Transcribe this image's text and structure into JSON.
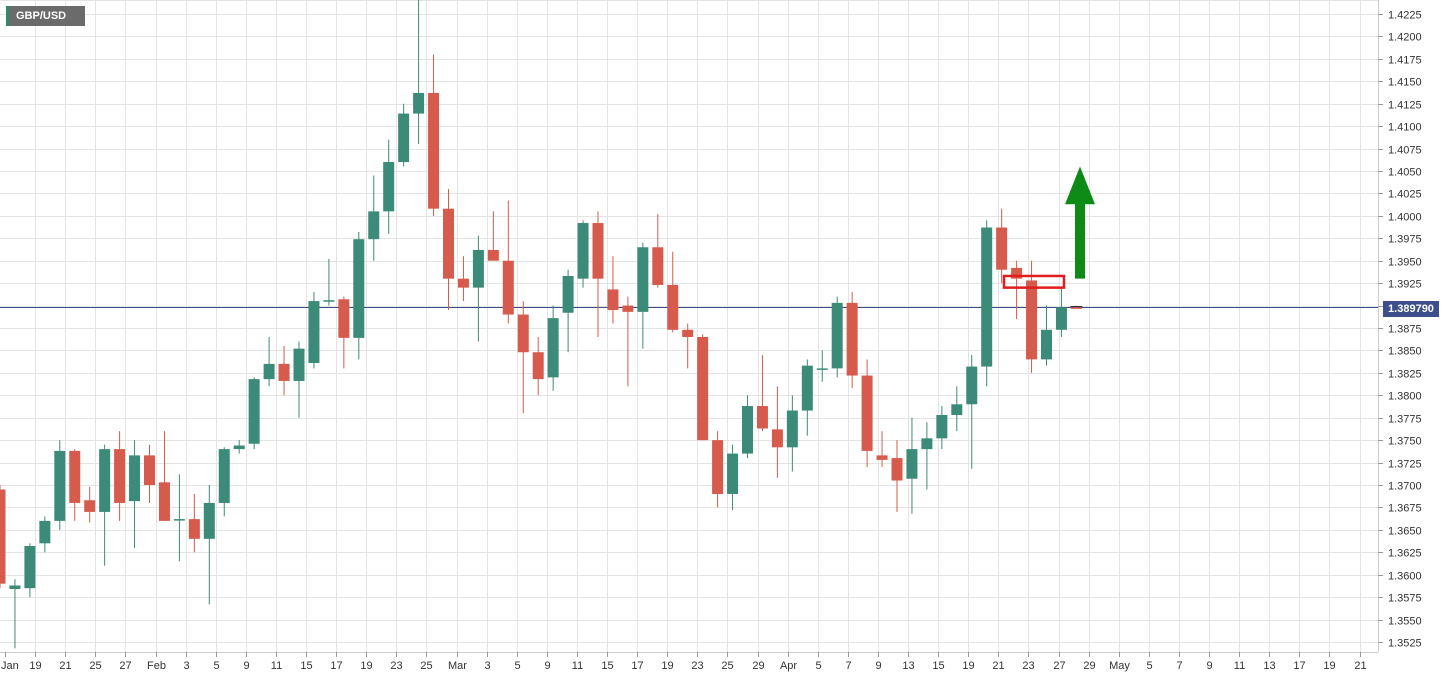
{
  "symbol": "GBP/USD",
  "current_price_label": "1.389790",
  "colors": {
    "up": "#3c8a78",
    "down": "#d65b4c",
    "grid": "#e4e4e4",
    "price_line": "#3d4e8c",
    "arrow": "#0e8a17",
    "box": "#e11d1d"
  },
  "annotations": {
    "arrow": "up-arrow-icon",
    "box": "highlight-rectangle"
  },
  "chart_data": {
    "type": "candlestick",
    "title": "",
    "xlabel": "",
    "ylabel": "",
    "ylim": [
      1.3512,
      1.4245
    ],
    "y_ticks": [
      "1.3525",
      "1.3550",
      "1.3575",
      "1.3600",
      "1.3625",
      "1.3650",
      "1.3675",
      "1.3700",
      "1.3725",
      "1.3750",
      "1.3775",
      "1.3800",
      "1.3825",
      "1.3850",
      "1.3875",
      "1.3900",
      "1.3925",
      "1.3950",
      "1.3975",
      "1.4000",
      "1.4025",
      "1.4050",
      "1.4075",
      "1.4100",
      "1.4125",
      "1.4150",
      "1.4175",
      "1.4200",
      "1.4225"
    ],
    "x_ticks": [
      "Jan",
      "19",
      "21",
      "25",
      "27",
      "Feb",
      "3",
      "5",
      "9",
      "11",
      "15",
      "17",
      "19",
      "23",
      "25",
      "Mar",
      "3",
      "5",
      "9",
      "11",
      "15",
      "17",
      "19",
      "23",
      "25",
      "29",
      "Apr",
      "5",
      "7",
      "9",
      "13",
      "15",
      "19",
      "21",
      "23",
      "27",
      "29",
      "May",
      "5",
      "7",
      "9",
      "11",
      "13",
      "17",
      "19",
      "21"
    ],
    "grid": true,
    "current_price": 1.38979,
    "candles": [
      {
        "o": 1.3695,
        "h": 1.37,
        "l": 1.3585,
        "c": 1.359
      },
      {
        "o": 1.3584,
        "h": 1.3595,
        "l": 1.3518,
        "c": 1.3588
      },
      {
        "o": 1.3585,
        "h": 1.3635,
        "l": 1.3575,
        "c": 1.3632
      },
      {
        "o": 1.3635,
        "h": 1.3665,
        "l": 1.3625,
        "c": 1.366
      },
      {
        "o": 1.366,
        "h": 1.375,
        "l": 1.365,
        "c": 1.3738
      },
      {
        "o": 1.3738,
        "h": 1.374,
        "l": 1.366,
        "c": 1.368
      },
      {
        "o": 1.3683,
        "h": 1.3698,
        "l": 1.3658,
        "c": 1.367
      },
      {
        "o": 1.367,
        "h": 1.3745,
        "l": 1.361,
        "c": 1.374
      },
      {
        "o": 1.374,
        "h": 1.376,
        "l": 1.366,
        "c": 1.368
      },
      {
        "o": 1.3682,
        "h": 1.375,
        "l": 1.363,
        "c": 1.3733
      },
      {
        "o": 1.3733,
        "h": 1.3745,
        "l": 1.368,
        "c": 1.37
      },
      {
        "o": 1.3703,
        "h": 1.376,
        "l": 1.366,
        "c": 1.366
      },
      {
        "o": 1.3662,
        "h": 1.3712,
        "l": 1.3615,
        "c": 1.3662
      },
      {
        "o": 1.3662,
        "h": 1.369,
        "l": 1.3625,
        "c": 1.364
      },
      {
        "o": 1.364,
        "h": 1.37,
        "l": 1.3567,
        "c": 1.368
      },
      {
        "o": 1.368,
        "h": 1.3742,
        "l": 1.3665,
        "c": 1.374
      },
      {
        "o": 1.374,
        "h": 1.375,
        "l": 1.3735,
        "c": 1.3744
      },
      {
        "o": 1.3746,
        "h": 1.382,
        "l": 1.374,
        "c": 1.3818
      },
      {
        "o": 1.3818,
        "h": 1.3865,
        "l": 1.381,
        "c": 1.3835
      },
      {
        "o": 1.3835,
        "h": 1.3855,
        "l": 1.38,
        "c": 1.3816
      },
      {
        "o": 1.3816,
        "h": 1.386,
        "l": 1.3775,
        "c": 1.3852
      },
      {
        "o": 1.3836,
        "h": 1.3915,
        "l": 1.383,
        "c": 1.3905
      },
      {
        "o": 1.3905,
        "h": 1.3952,
        "l": 1.39,
        "c": 1.3906
      },
      {
        "o": 1.3907,
        "h": 1.391,
        "l": 1.383,
        "c": 1.3864
      },
      {
        "o": 1.3864,
        "h": 1.3982,
        "l": 1.384,
        "c": 1.3974
      },
      {
        "o": 1.3974,
        "h": 1.4045,
        "l": 1.395,
        "c": 1.4005
      },
      {
        "o": 1.4005,
        "h": 1.4085,
        "l": 1.398,
        "c": 1.406
      },
      {
        "o": 1.406,
        "h": 1.4125,
        "l": 1.4055,
        "c": 1.4114
      },
      {
        "o": 1.4114,
        "h": 1.4245,
        "l": 1.408,
        "c": 1.4137
      },
      {
        "o": 1.4137,
        "h": 1.418,
        "l": 1.4,
        "c": 1.4008
      },
      {
        "o": 1.4008,
        "h": 1.403,
        "l": 1.3895,
        "c": 1.393
      },
      {
        "o": 1.393,
        "h": 1.3955,
        "l": 1.3905,
        "c": 1.392
      },
      {
        "o": 1.392,
        "h": 1.3978,
        "l": 1.386,
        "c": 1.3962
      },
      {
        "o": 1.3962,
        "h": 1.4005,
        "l": 1.395,
        "c": 1.395
      },
      {
        "o": 1.395,
        "h": 1.4017,
        "l": 1.388,
        "c": 1.389
      },
      {
        "o": 1.389,
        "h": 1.3905,
        "l": 1.378,
        "c": 1.3848
      },
      {
        "o": 1.3848,
        "h": 1.3865,
        "l": 1.38,
        "c": 1.3818
      },
      {
        "o": 1.382,
        "h": 1.39,
        "l": 1.3805,
        "c": 1.3886
      },
      {
        "o": 1.3892,
        "h": 1.394,
        "l": 1.3848,
        "c": 1.3933
      },
      {
        "o": 1.393,
        "h": 1.3995,
        "l": 1.392,
        "c": 1.3992
      },
      {
        "o": 1.3992,
        "h": 1.4005,
        "l": 1.3865,
        "c": 1.393
      },
      {
        "o": 1.3918,
        "h": 1.3955,
        "l": 1.388,
        "c": 1.3895
      },
      {
        "o": 1.39,
        "h": 1.391,
        "l": 1.381,
        "c": 1.3893
      },
      {
        "o": 1.3893,
        "h": 1.397,
        "l": 1.3852,
        "c": 1.3965
      },
      {
        "o": 1.3965,
        "h": 1.4002,
        "l": 1.392,
        "c": 1.3923
      },
      {
        "o": 1.3923,
        "h": 1.396,
        "l": 1.387,
        "c": 1.3873
      },
      {
        "o": 1.3873,
        "h": 1.388,
        "l": 1.383,
        "c": 1.3865
      },
      {
        "o": 1.3865,
        "h": 1.3868,
        "l": 1.375,
        "c": 1.375
      },
      {
        "o": 1.375,
        "h": 1.376,
        "l": 1.3675,
        "c": 1.369
      },
      {
        "o": 1.369,
        "h": 1.3745,
        "l": 1.3672,
        "c": 1.3735
      },
      {
        "o": 1.3735,
        "h": 1.38,
        "l": 1.373,
        "c": 1.3788
      },
      {
        "o": 1.3788,
        "h": 1.3845,
        "l": 1.376,
        "c": 1.3763
      },
      {
        "o": 1.3762,
        "h": 1.381,
        "l": 1.3708,
        "c": 1.3742
      },
      {
        "o": 1.3742,
        "h": 1.38,
        "l": 1.3715,
        "c": 1.3783
      },
      {
        "o": 1.3783,
        "h": 1.384,
        "l": 1.3755,
        "c": 1.3833
      },
      {
        "o": 1.383,
        "h": 1.385,
        "l": 1.3815,
        "c": 1.383
      },
      {
        "o": 1.383,
        "h": 1.391,
        "l": 1.382,
        "c": 1.3903
      },
      {
        "o": 1.3903,
        "h": 1.3915,
        "l": 1.3808,
        "c": 1.3822
      },
      {
        "o": 1.3822,
        "h": 1.384,
        "l": 1.372,
        "c": 1.3738
      },
      {
        "o": 1.3733,
        "h": 1.376,
        "l": 1.372,
        "c": 1.3728
      },
      {
        "o": 1.373,
        "h": 1.375,
        "l": 1.367,
        "c": 1.3705
      },
      {
        "o": 1.3707,
        "h": 1.3775,
        "l": 1.3668,
        "c": 1.374
      },
      {
        "o": 1.374,
        "h": 1.377,
        "l": 1.3695,
        "c": 1.3752
      },
      {
        "o": 1.3752,
        "h": 1.3788,
        "l": 1.374,
        "c": 1.3778
      },
      {
        "o": 1.3778,
        "h": 1.381,
        "l": 1.376,
        "c": 1.379
      },
      {
        "o": 1.379,
        "h": 1.3845,
        "l": 1.3718,
        "c": 1.3832
      },
      {
        "o": 1.3832,
        "h": 1.3995,
        "l": 1.381,
        "c": 1.3987
      },
      {
        "o": 1.3987,
        "h": 1.4008,
        "l": 1.3925,
        "c": 1.394
      },
      {
        "o": 1.3942,
        "h": 1.395,
        "l": 1.3885,
        "c": 1.393
      },
      {
        "o": 1.3928,
        "h": 1.395,
        "l": 1.3825,
        "c": 1.384
      },
      {
        "o": 1.384,
        "h": 1.39,
        "l": 1.3833,
        "c": 1.3873
      },
      {
        "o": 1.3873,
        "h": 1.392,
        "l": 1.3865,
        "c": 1.3898
      },
      {
        "o": 1.3898,
        "h": 1.39,
        "l": 1.3897,
        "c": 1.38979
      }
    ]
  }
}
